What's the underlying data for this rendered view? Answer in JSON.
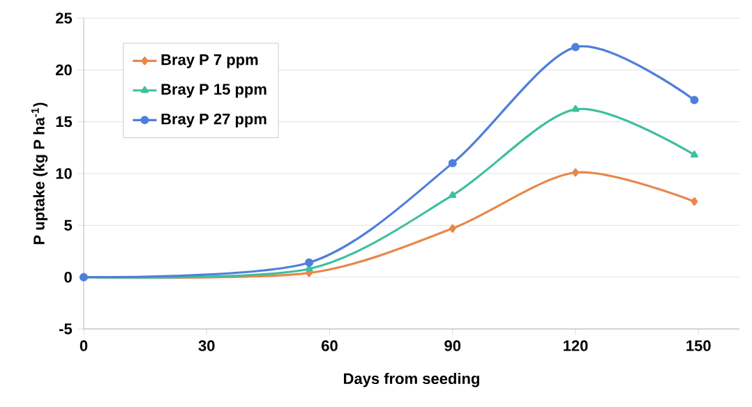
{
  "chart_data": {
    "type": "line",
    "xlabel": "Days from seeding",
    "ylabel": "P uptake (kg P ha$^{-1}$)",
    "x": [
      0,
      55,
      90,
      120,
      149
    ],
    "series": [
      {
        "name": "Bray P 7 ppm",
        "color": "#e8874a",
        "marker": "diamond",
        "values": [
          0,
          0.4,
          4.7,
          10.1,
          7.3
        ]
      },
      {
        "name": "Bray P 15 ppm",
        "color": "#3fbfa0",
        "marker": "triangle",
        "values": [
          0,
          0.8,
          7.9,
          16.2,
          11.8
        ]
      },
      {
        "name": "Bray P 27 ppm",
        "color": "#4f7fdc",
        "marker": "circle",
        "values": [
          0,
          1.4,
          11.0,
          22.2,
          17.1
        ]
      }
    ],
    "xlim": [
      0,
      160
    ],
    "ylim": [
      -5,
      25
    ],
    "xticks": [
      0,
      30,
      60,
      90,
      120,
      150
    ],
    "yticks": [
      -5,
      0,
      5,
      10,
      15,
      20,
      25
    ],
    "grid": "y",
    "legend": "top left",
    "line_style": "solid"
  }
}
